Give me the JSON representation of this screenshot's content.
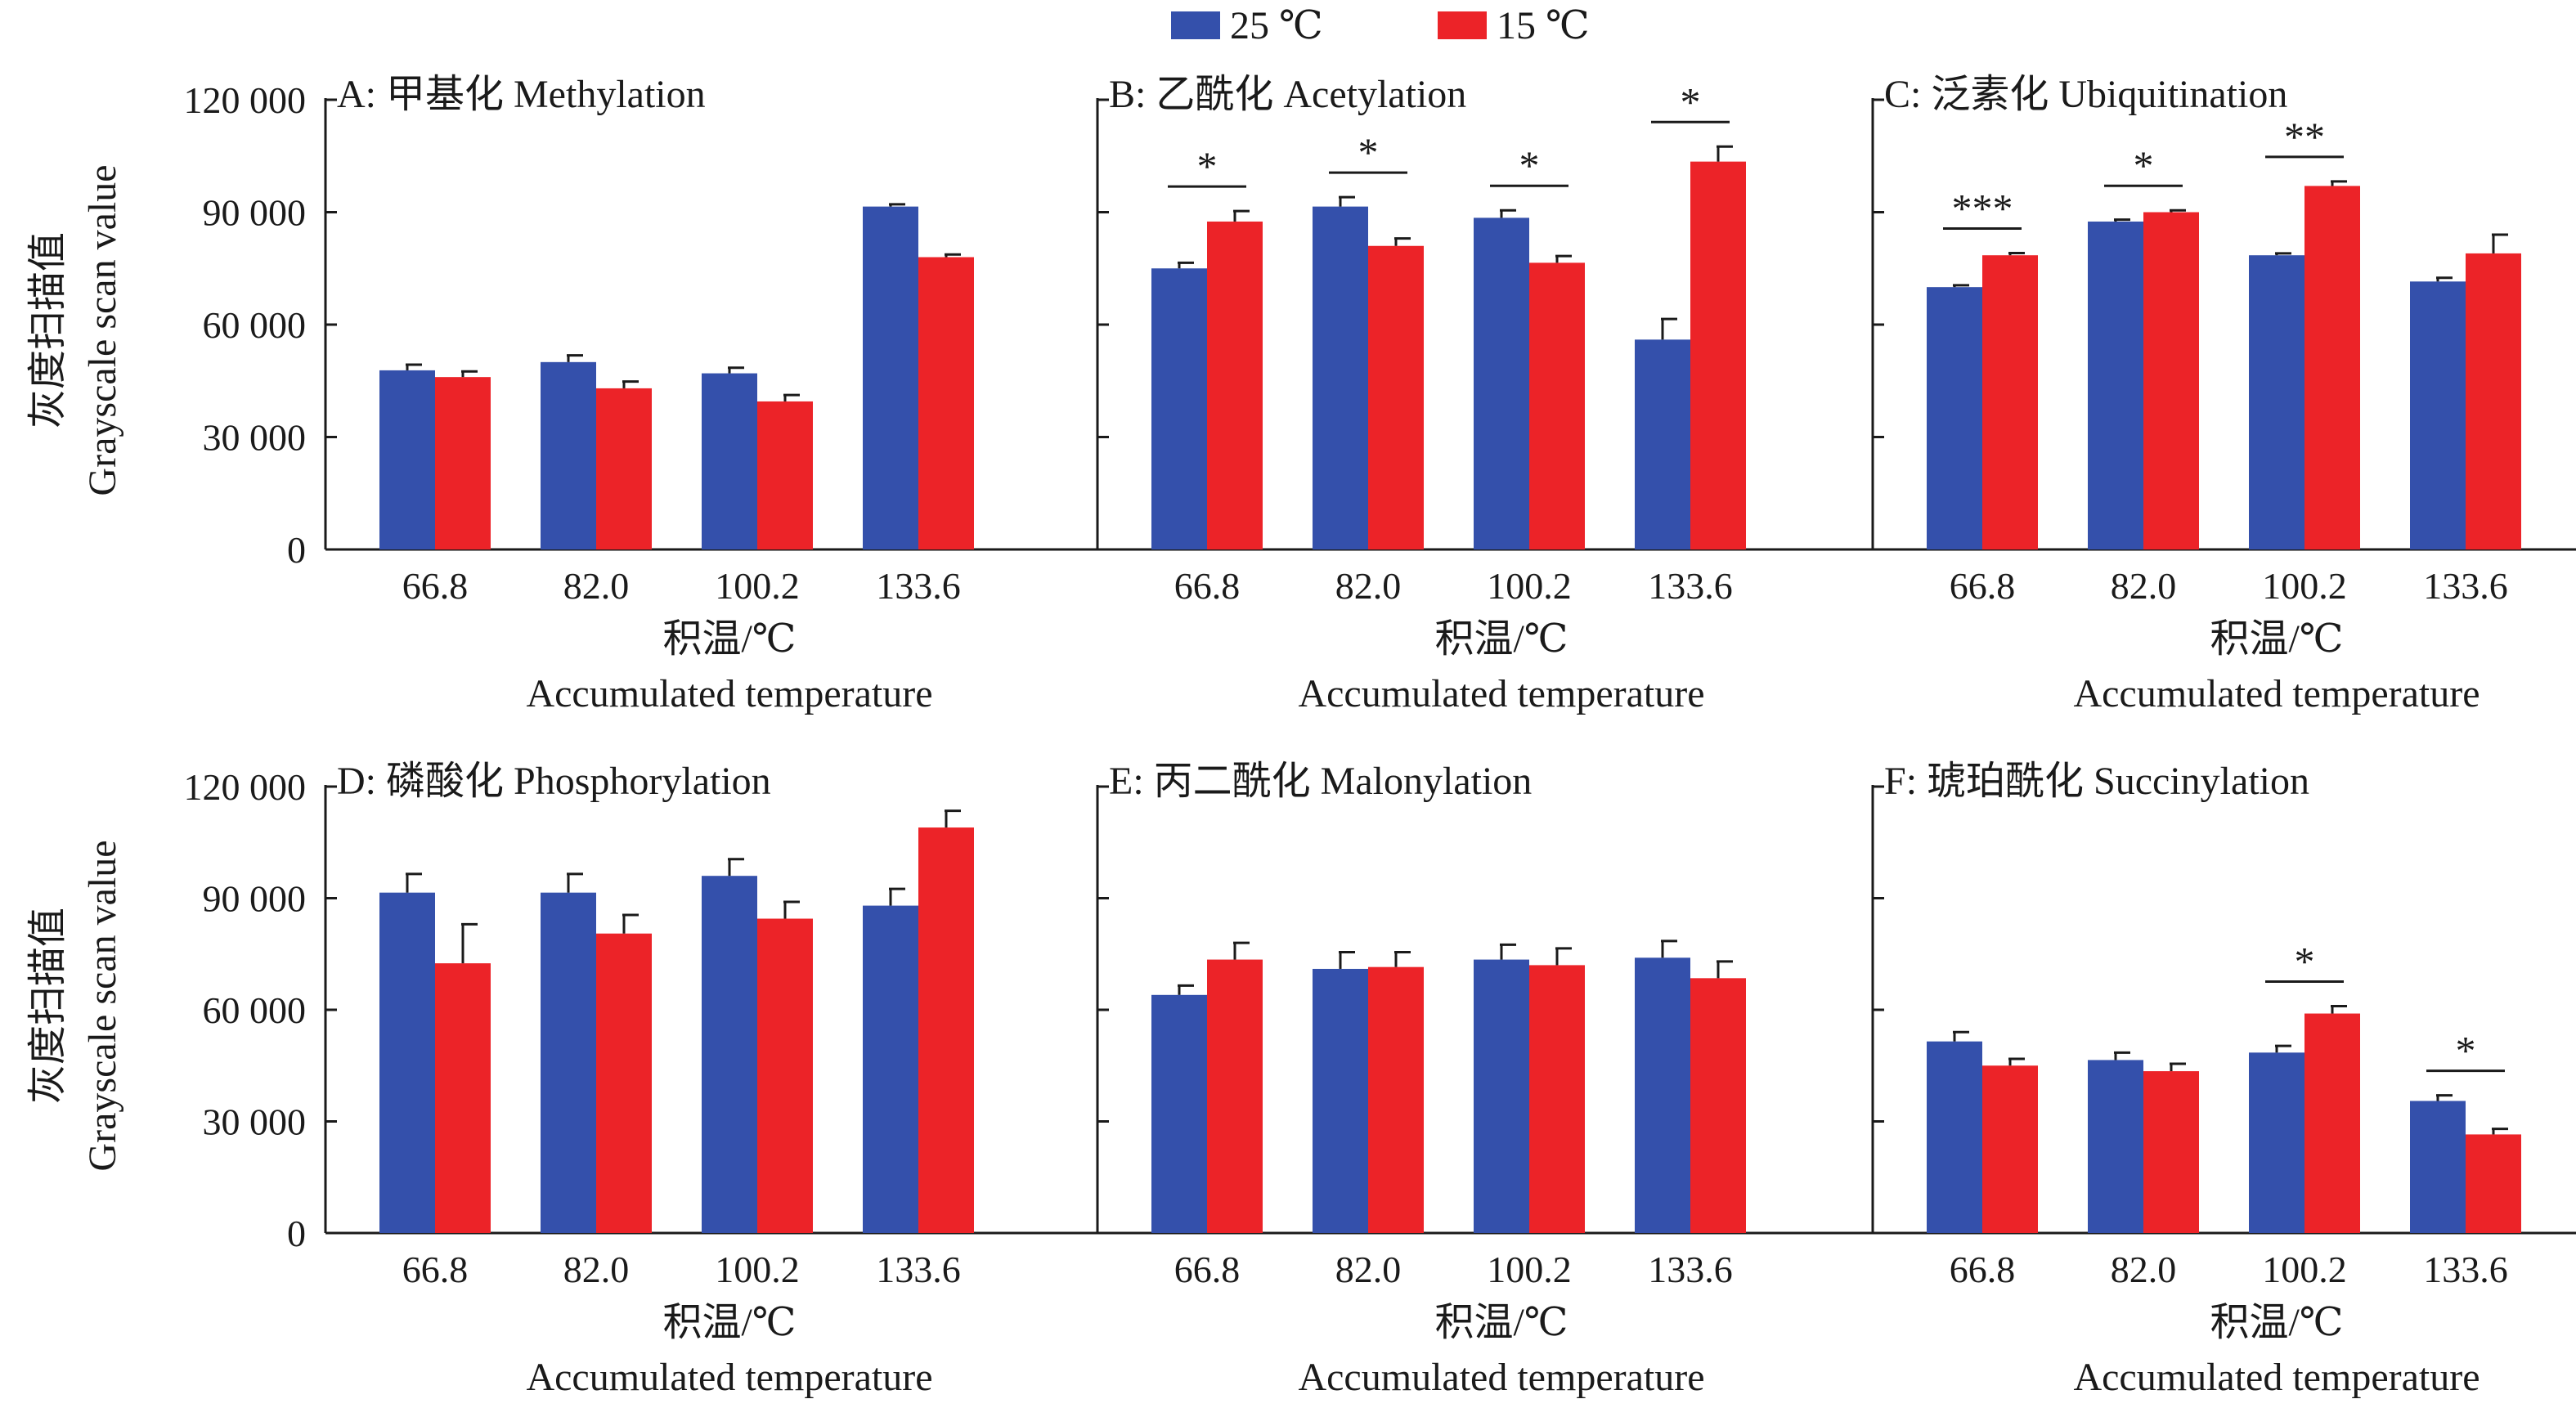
{
  "legend": [
    {
      "name": "25 ℃",
      "color": "#3450AB"
    },
    {
      "name": "15 ℃",
      "color": "#EC2328"
    }
  ],
  "shared": {
    "categories": [
      "66.8",
      "82.0",
      "100.2",
      "133.6"
    ],
    "ylim": [
      0,
      120000
    ],
    "yticks": [
      0,
      30000,
      60000,
      90000,
      120000
    ],
    "ytick_labels": [
      "0",
      "30 000",
      "60 000",
      "90 000",
      "120 000"
    ],
    "ylabel_zh": "灰度扫描值",
    "ylabel_en": "Grayscale scan value",
    "xlabel_zh": "积温/℃",
    "xlabel_en": "Accumulated temperature"
  },
  "chart_data": [
    {
      "type": "bar",
      "title": "A: 甲基化 Methylation",
      "categories": [
        "66.8",
        "82.0",
        "100.2",
        "133.6"
      ],
      "ylim": [
        0,
        120000
      ],
      "series": [
        {
          "name": "25 ℃",
          "values": [
            47800,
            50000,
            47000,
            91500
          ],
          "errors": [
            1500,
            1800,
            1500,
            600
          ]
        },
        {
          "name": "15 ℃",
          "values": [
            46000,
            43000,
            39500,
            78000
          ],
          "errors": [
            1500,
            1800,
            1700,
            700
          ]
        }
      ],
      "significance": []
    },
    {
      "type": "bar",
      "title": "B: 乙酰化 Acetylation",
      "categories": [
        "66.8",
        "82.0",
        "100.2",
        "133.6"
      ],
      "ylim": [
        0,
        120000
      ],
      "series": [
        {
          "name": "25 ℃",
          "values": [
            75000,
            91500,
            88500,
            56000
          ],
          "errors": [
            1500,
            2500,
            2000,
            5500
          ]
        },
        {
          "name": "15 ℃",
          "values": [
            87500,
            81000,
            76500,
            103500
          ],
          "errors": [
            2800,
            2000,
            1800,
            4000
          ]
        }
      ],
      "significance": [
        "*",
        "*",
        "*",
        "*"
      ]
    },
    {
      "type": "bar",
      "title": "C: 泛素化 Ubiquitination",
      "categories": [
        "66.8",
        "82.0",
        "100.2",
        "133.6"
      ],
      "ylim": [
        0,
        120000
      ],
      "series": [
        {
          "name": "25 ℃",
          "values": [
            70000,
            87500,
            78500,
            71500
          ],
          "errors": [
            500,
            500,
            500,
            1000
          ]
        },
        {
          "name": "15 ℃",
          "values": [
            78500,
            90000,
            97000,
            79000
          ],
          "errors": [
            600,
            500,
            1200,
            5000
          ]
        }
      ],
      "significance": [
        "***",
        "*",
        "**",
        ""
      ]
    },
    {
      "type": "bar",
      "title": "D: 磷酸化 Phosphorylation",
      "categories": [
        "66.8",
        "82.0",
        "100.2",
        "133.6"
      ],
      "ylim": [
        0,
        120000
      ],
      "series": [
        {
          "name": "25 ℃",
          "values": [
            91500,
            91500,
            96000,
            88000
          ],
          "errors": [
            5000,
            5000,
            4500,
            4500
          ]
        },
        {
          "name": "15 ℃",
          "values": [
            72500,
            80500,
            84500,
            109000
          ],
          "errors": [
            10500,
            5000,
            4500,
            4500
          ]
        }
      ],
      "significance": []
    },
    {
      "type": "bar",
      "title": "E: 丙二酰化 Malonylation",
      "categories": [
        "66.8",
        "82.0",
        "100.2",
        "133.6"
      ],
      "ylim": [
        0,
        120000
      ],
      "series": [
        {
          "name": "25 ℃",
          "values": [
            64000,
            71000,
            73500,
            74000
          ],
          "errors": [
            2500,
            4500,
            4000,
            4500
          ]
        },
        {
          "name": "15 ℃",
          "values": [
            73500,
            71500,
            72000,
            68500
          ],
          "errors": [
            4500,
            4000,
            4500,
            4500
          ]
        }
      ],
      "significance": []
    },
    {
      "type": "bar",
      "title": "F: 琥珀酰化 Succinylation",
      "categories": [
        "66.8",
        "82.0",
        "100.2",
        "133.6"
      ],
      "ylim": [
        0,
        120000
      ],
      "series": [
        {
          "name": "25 ℃",
          "values": [
            51500,
            46500,
            48500,
            35500
          ],
          "errors": [
            2500,
            2000,
            1800,
            1500
          ]
        },
        {
          "name": "15 ℃",
          "values": [
            45000,
            43500,
            59000,
            26500
          ],
          "errors": [
            1800,
            2000,
            2000,
            1500
          ]
        }
      ],
      "significance": [
        "",
        "",
        "*",
        "*"
      ]
    }
  ]
}
